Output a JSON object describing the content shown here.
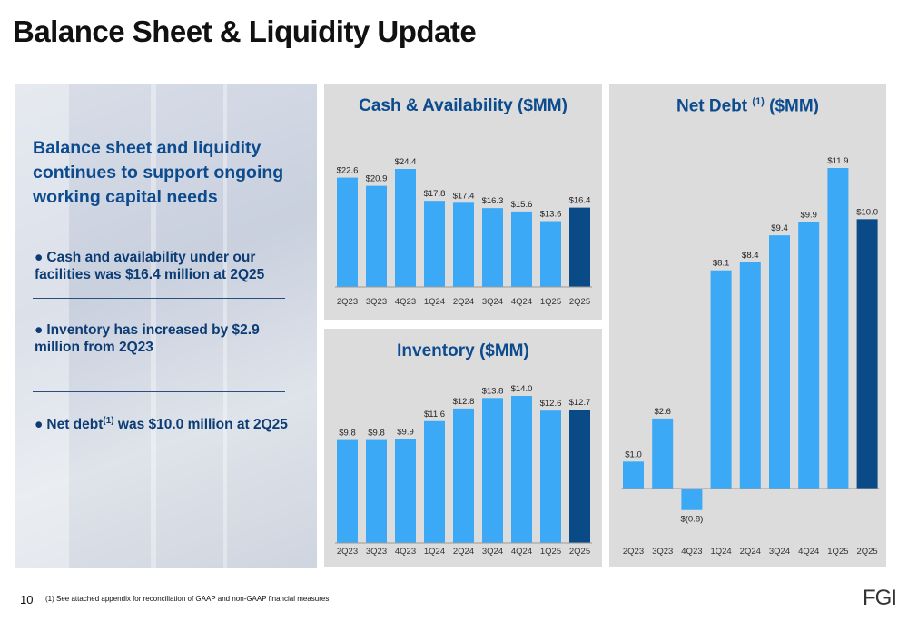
{
  "title": "Balance Sheet & Liquidity Update",
  "left_panel": {
    "headline": "Balance sheet and liquidity continues to support ongoing working capital needs",
    "bullets": [
      {
        "text": "Cash and availability under our facilities was $16.4 million at 2Q25"
      },
      {
        "text": "Inventory has increased by $2.9 million from 2Q23"
      },
      {
        "text_before": "Net debt",
        "sup": "(1)",
        "text_after": " was $10.0 million at 2Q25"
      }
    ]
  },
  "footer": {
    "page_number": "10",
    "note": "(1) See attached appendix for reconciliation of GAAP and non-GAAP financial measures",
    "logo": "FGI"
  },
  "colors": {
    "bar": "#3ba9f5",
    "highlight": "#0a4a86",
    "panel_bg": "#dcdcdc",
    "title": "#0c4b8e"
  },
  "chart_data": [
    {
      "type": "bar",
      "title": "Cash & Availability ($MM)",
      "categories": [
        "2Q23",
        "3Q23",
        "4Q23",
        "1Q24",
        "2Q24",
        "3Q24",
        "4Q24",
        "1Q25",
        "2Q25"
      ],
      "values": [
        22.6,
        20.9,
        24.4,
        17.8,
        17.4,
        16.3,
        15.6,
        13.6,
        16.4
      ],
      "labels": [
        "$22.6",
        "$20.9",
        "$24.4",
        "$17.8",
        "$17.4",
        "$16.3",
        "$15.6",
        "$13.6",
        "$16.4"
      ],
      "highlight_index": 8,
      "ylim": [
        0,
        24.4
      ]
    },
    {
      "type": "bar",
      "title": "Inventory ($MM)",
      "categories": [
        "2Q23",
        "3Q23",
        "4Q23",
        "1Q24",
        "2Q24",
        "3Q24",
        "4Q24",
        "1Q25",
        "2Q25"
      ],
      "values": [
        9.8,
        9.8,
        9.9,
        11.6,
        12.8,
        13.8,
        14.0,
        12.6,
        12.7
      ],
      "labels": [
        "$9.8",
        "$9.8",
        "$9.9",
        "$11.6",
        "$12.8",
        "$13.8",
        "$14.0",
        "$12.6",
        "$12.7"
      ],
      "highlight_index": 8,
      "ylim": [
        0,
        14.0
      ]
    },
    {
      "type": "bar",
      "title_before": "Net Debt ",
      "title_sup": "(1)",
      "title_after": " ($MM)",
      "categories": [
        "2Q23",
        "3Q23",
        "4Q23",
        "1Q24",
        "2Q24",
        "3Q24",
        "4Q24",
        "1Q25",
        "2Q25"
      ],
      "values": [
        1.0,
        2.6,
        -0.8,
        8.1,
        8.4,
        9.4,
        9.9,
        11.9,
        10.0
      ],
      "labels": [
        "$1.0",
        "$2.6",
        "$(0.8)",
        "$8.1",
        "$8.4",
        "$9.4",
        "$9.9",
        "$11.9",
        "$10.0"
      ],
      "highlight_index": 8,
      "ylim": [
        -0.8,
        11.9
      ]
    }
  ]
}
